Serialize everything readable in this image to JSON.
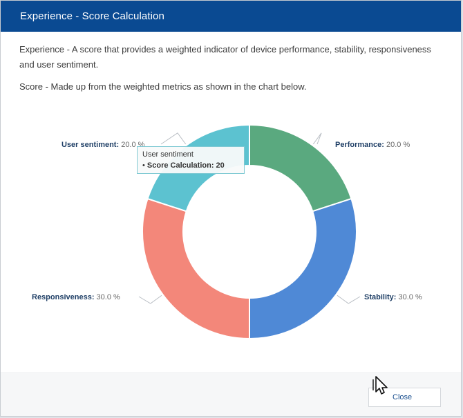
{
  "dialog": {
    "title": "Experience - Score Calculation",
    "description_1": "Experience - A score that provides a weighted indicator of device performance, stability, responsiveness and user sentiment.",
    "description_2": "Score - Made up from the weighted metrics as shown in the chart below.",
    "close_label": "Close"
  },
  "chart_data": {
    "type": "pie",
    "variant": "donut",
    "categories": [
      "Performance",
      "Stability",
      "Responsiveness",
      "User sentiment"
    ],
    "values": [
      20.0,
      30.0,
      30.0,
      20.0
    ],
    "labels": [
      "Performance: 20.0 %",
      "Stability: 30.0 %",
      "Responsiveness: 30.0 %",
      "User sentiment: 20.0 %"
    ],
    "colors": [
      "#5aa97f",
      "#4f89d6",
      "#f3877a",
      "#5cc2d0"
    ],
    "tooltip": {
      "series": "User sentiment",
      "line": "Score Calculation: 20"
    }
  }
}
